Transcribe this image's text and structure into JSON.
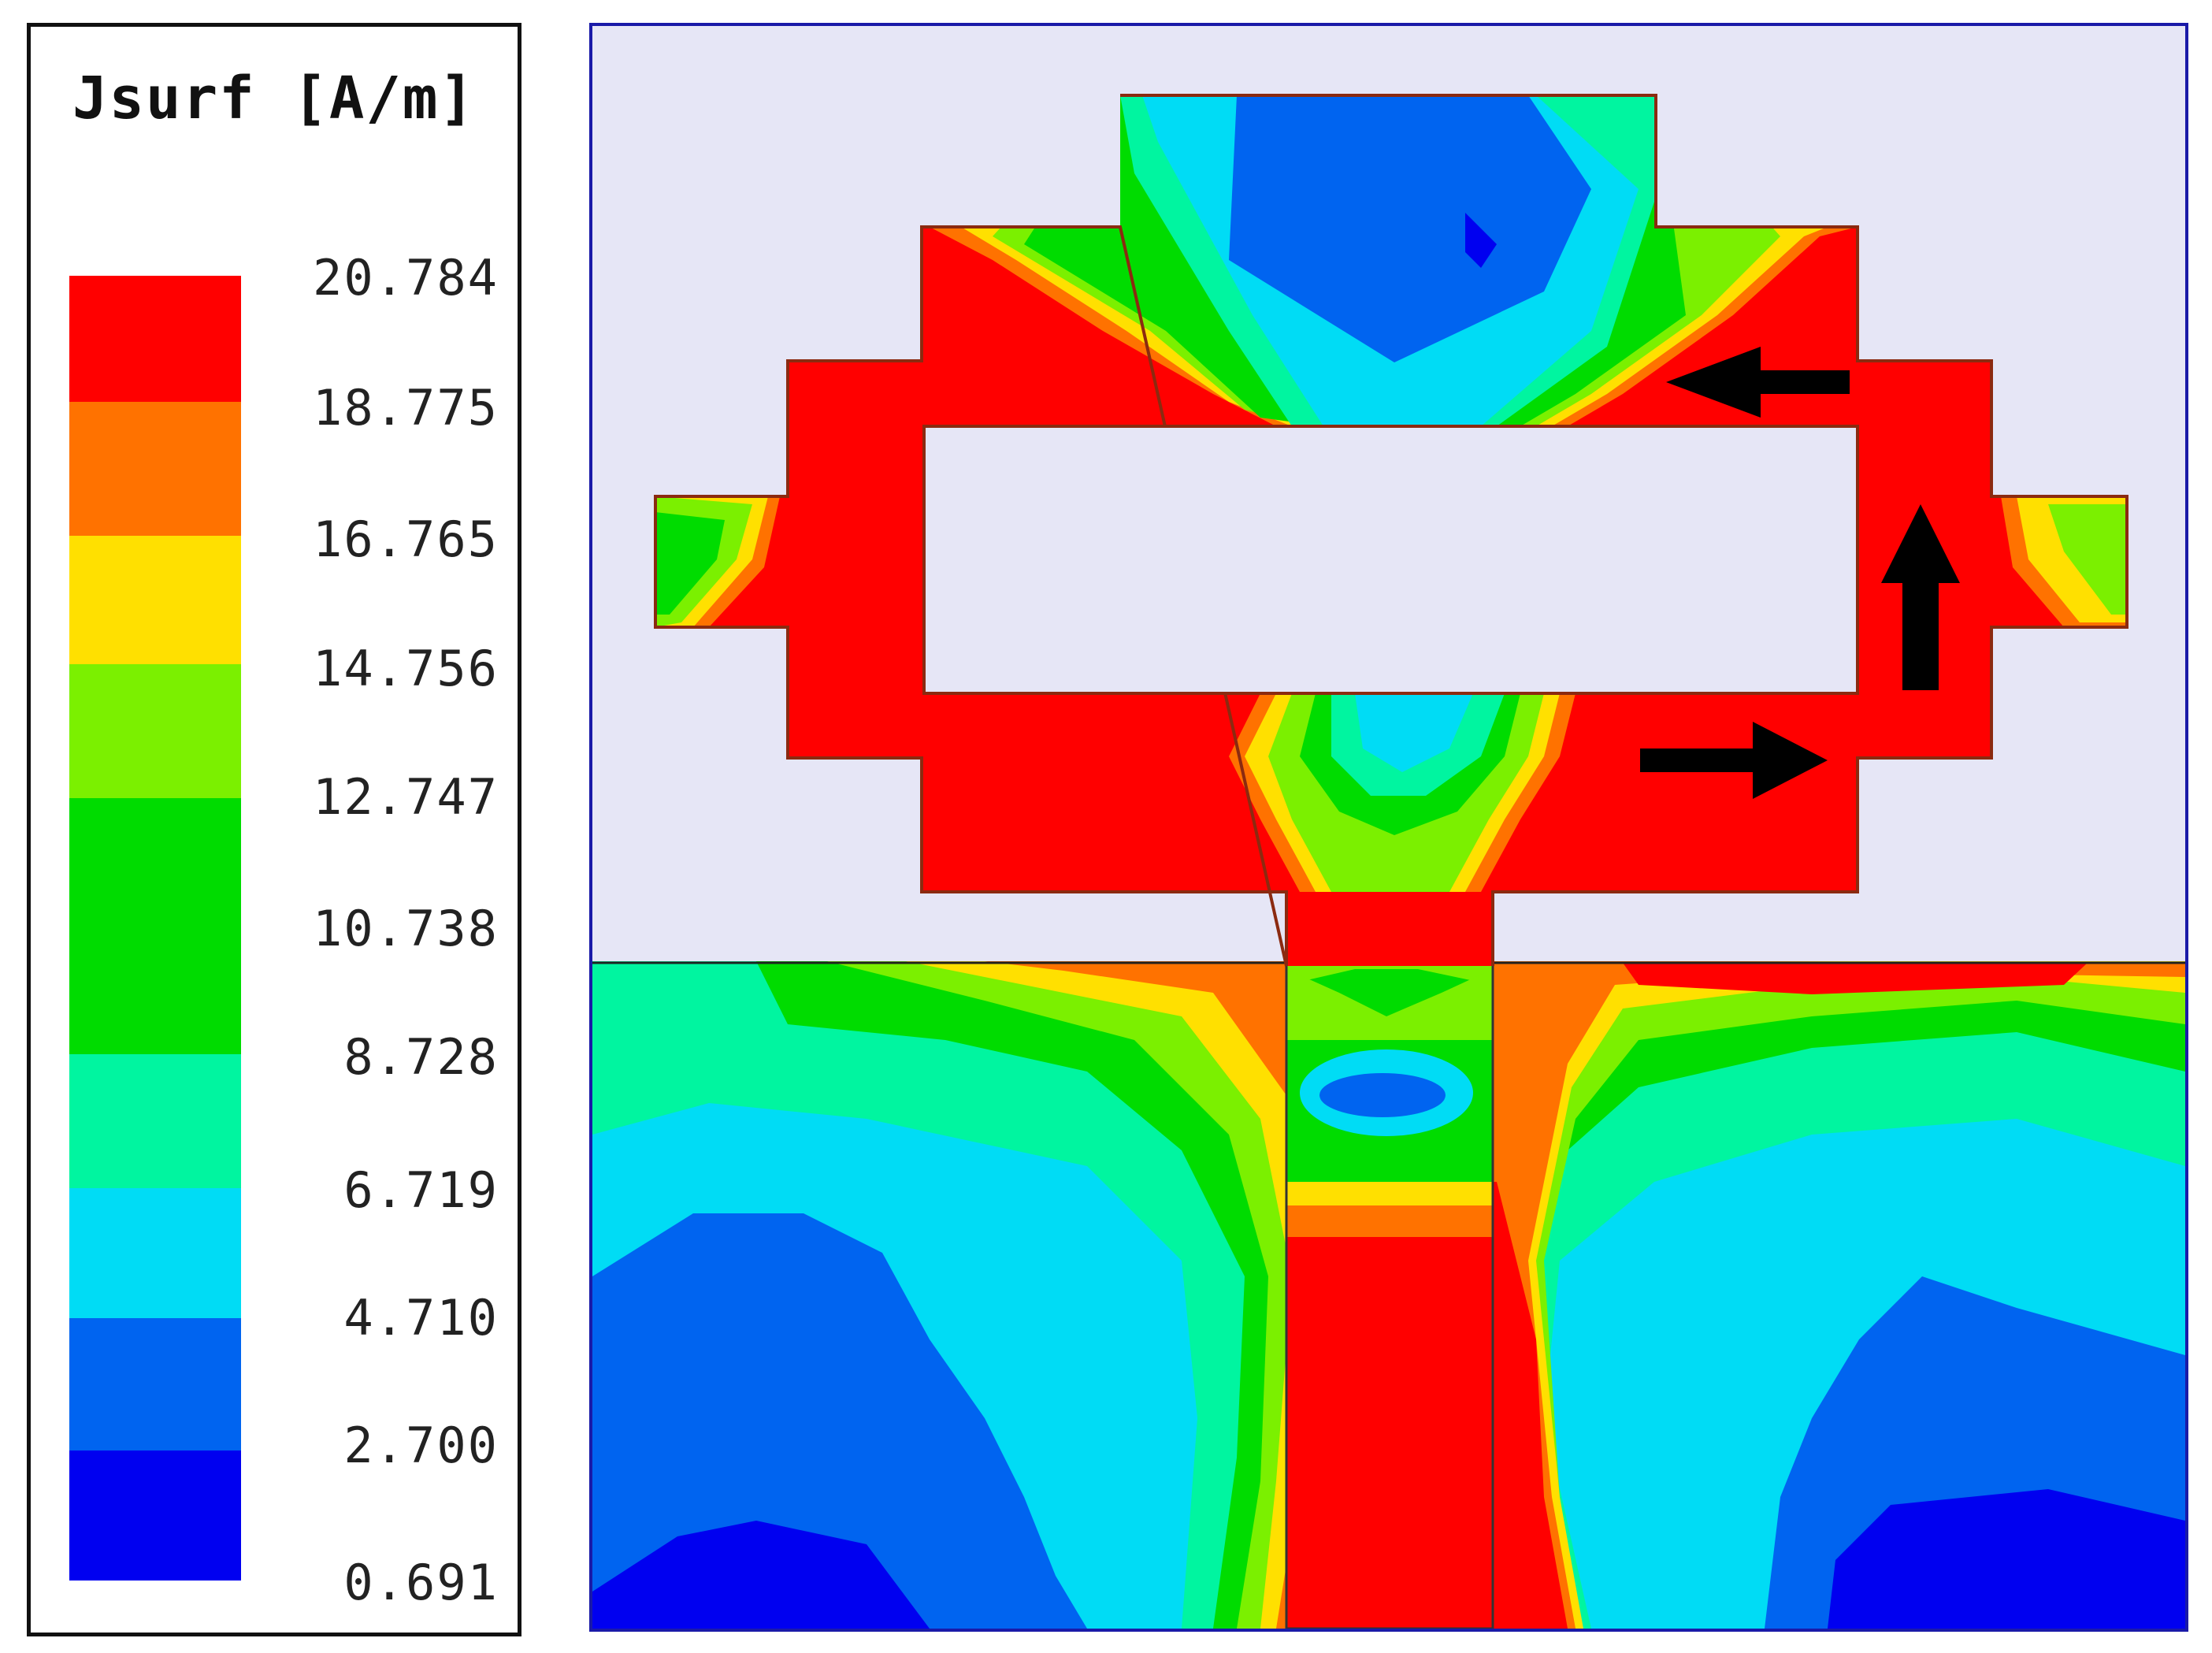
{
  "legend": {
    "title": "Jsurf [A/m]",
    "levels": [
      {
        "value": "20.784",
        "color": "#ff0000"
      },
      {
        "value": "18.775",
        "color": "#ff7200"
      },
      {
        "value": "16.765",
        "color": "#ffe000"
      },
      {
        "value": "14.756",
        "color": "#7bf000"
      },
      {
        "value": "12.747",
        "color": "#00dc00"
      },
      {
        "value": "10.738",
        "color": "#00dc00"
      },
      {
        "value": "8.728",
        "color": "#00f5a0"
      },
      {
        "value": "6.719",
        "color": "#00dcf5"
      },
      {
        "value": "4.710",
        "color": "#0064f0"
      },
      {
        "value": "2.700",
        "color": "#0000f0"
      },
      {
        "value": "0.691",
        "color": null
      }
    ]
  },
  "colors": {
    "background": "#e6e6f6",
    "outline": "#8b2a10",
    "frame": "#1a1aa8",
    "arrow": "#000000"
  },
  "plot": {
    "arrows": [
      "left-arrow",
      "up-arrow",
      "right-arrow"
    ]
  }
}
